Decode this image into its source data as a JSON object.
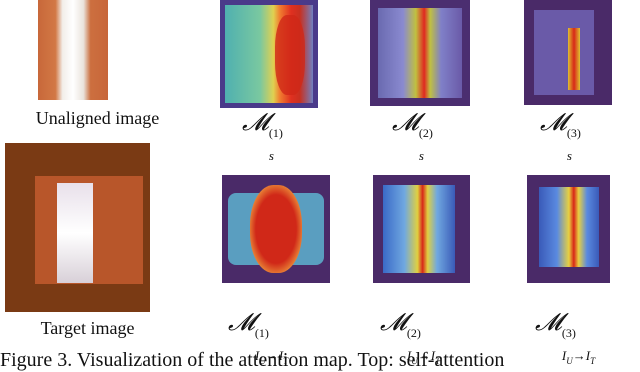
{
  "figure": {
    "top_row": {
      "source_label": "Unaligned image",
      "maps": [
        {
          "symbol": "𝓜",
          "sup": "(1)",
          "sub": "s"
        },
        {
          "symbol": "𝓜",
          "sup": "(2)",
          "sub": "s"
        },
        {
          "symbol": "𝓜",
          "sup": "(3)",
          "sub": "s"
        }
      ]
    },
    "bottom_row": {
      "source_label": "Target image",
      "maps": [
        {
          "symbol": "𝓜",
          "sup": "(1)",
          "sub_a": "I",
          "sub_a_sub": "U",
          "arrow": "→",
          "sub_b": "I",
          "sub_b_sub": "T"
        },
        {
          "symbol": "𝓜",
          "sup": "(2)",
          "sub_a": "I",
          "sub_a_sub": "U",
          "arrow": "→",
          "sub_b": "I",
          "sub_b_sub": "T"
        },
        {
          "symbol": "𝓜",
          "sup": "(3)",
          "sub_a": "I",
          "sub_a_sub": "U",
          "arrow": "→",
          "sub_b": "I",
          "sub_b_sub": "T"
        }
      ]
    },
    "caption": "Figure 3. Visualization of the attention map. Top: self-attention"
  }
}
